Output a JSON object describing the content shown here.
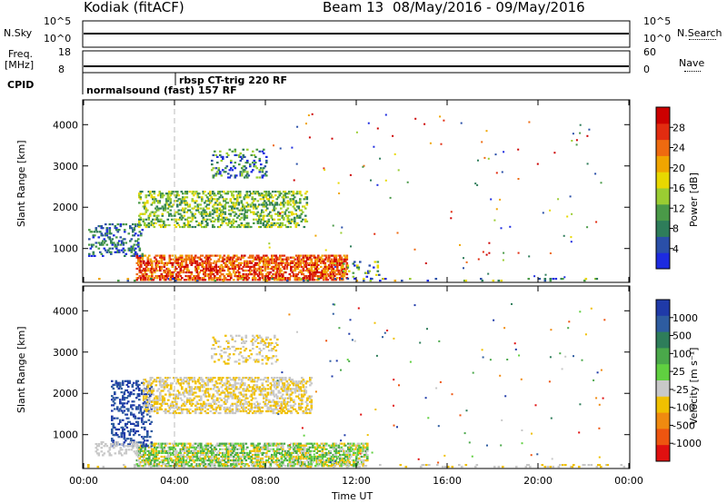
{
  "header": {
    "site": "Kodiak (fitACF)",
    "beam": "Beam 13",
    "dates": "08/May/2016 - 09/May/2016"
  },
  "top_panels": {
    "nsky_label": "N.Sky",
    "nsky_ticks": [
      "10^5",
      "10^0"
    ],
    "nsearch_label": "N.Search",
    "nsearch_ticks": [
      "10^5",
      "10^0"
    ],
    "freq_label_line1": "Freq.",
    "freq_label_line2": "[MHz]",
    "freq_ticks": [
      "18",
      "8"
    ],
    "nave_label": "Nave",
    "nave_ticks": [
      "60",
      "0"
    ],
    "cpid_label": "CPID",
    "cpid_segments": [
      "normalsound (fast) 157 RF",
      "rbsp CT-trig 220 RF"
    ]
  },
  "chart_data": [
    {
      "type": "heatmap",
      "name": "power",
      "ylabel": "Slant Range [km]",
      "xlabel": "",
      "yticks": [
        1000,
        2000,
        3000,
        4000
      ],
      "ylim": [
        180,
        4600
      ],
      "xlim_hours": [
        0,
        24
      ],
      "colorbar": {
        "label": "Power [dB]",
        "ticks": [
          "4",
          "8",
          "12",
          "16",
          "20",
          "24",
          "28"
        ],
        "colors": [
          "#1d2be0",
          "#2a4fa8",
          "#2e7d5a",
          "#4a9a48",
          "#9acd32",
          "#e8d800",
          "#f0a500",
          "#ee6a10",
          "#e22c10",
          "#cc0000"
        ]
      }
    },
    {
      "type": "heatmap",
      "name": "velocity",
      "ylabel": "Slant Range [km]",
      "xlabel": "Time UT",
      "yticks": [
        1000,
        2000,
        3000,
        4000
      ],
      "ylim": [
        180,
        4600
      ],
      "xlim_hours": [
        0,
        24
      ],
      "xticks": [
        "00:00",
        "04:00",
        "08:00",
        "12:00",
        "16:00",
        "20:00",
        "00:00"
      ],
      "colorbar": {
        "label": "Velocity [m s⁻¹]",
        "ticks": [
          "1000",
          "500",
          "100",
          "25",
          "-25",
          "-100",
          "-500",
          "-1000"
        ],
        "colors": [
          "#1f3aa8",
          "#2e5ca0",
          "#2e7d5a",
          "#4aa84a",
          "#60d040",
          "#c8c8c8",
          "#f0c000",
          "#f08a10",
          "#ee5510",
          "#e01010"
        ]
      }
    }
  ]
}
